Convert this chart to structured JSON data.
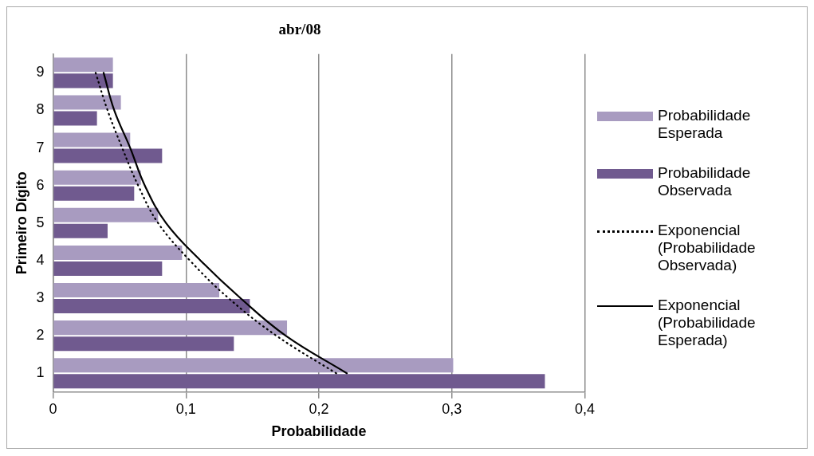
{
  "chart_data": {
    "type": "bar",
    "orientation": "horizontal",
    "title": "abr/08",
    "xlabel": "Probabilidade",
    "ylabel": "Primeiro Dígito",
    "categories": [
      "9",
      "8",
      "7",
      "6",
      "5",
      "4",
      "3",
      "2",
      "1"
    ],
    "xlim": [
      0,
      0.4
    ],
    "xticks": [
      {
        "value": 0,
        "label": "0"
      },
      {
        "value": 0.1,
        "label": "0,1"
      },
      {
        "value": 0.2,
        "label": "0,2"
      },
      {
        "value": 0.3,
        "label": "0,3"
      },
      {
        "value": 0.4,
        "label": "0,4"
      }
    ],
    "grid": "x",
    "legend": "right",
    "series": [
      {
        "name": "Probabilidade Esperada",
        "color": "#a89bc0",
        "values": [
          0.045,
          0.051,
          0.058,
          0.066,
          0.079,
          0.097,
          0.125,
          0.176,
          0.301
        ]
      },
      {
        "name": "Probabilidade Observada",
        "color": "#705a8f",
        "values": [
          0.045,
          0.033,
          0.082,
          0.061,
          0.041,
          0.082,
          0.148,
          0.136,
          0.37
        ]
      },
      {
        "name": "Exponencial (Probabilidade Observada)",
        "type": "line",
        "line_style": "dotted",
        "color": "#000000",
        "values": [
          0.032,
          0.041,
          0.052,
          0.064,
          0.079,
          0.103,
          0.132,
          0.168,
          0.213
        ]
      },
      {
        "name": "Exponencial (Probabilidade Esperada)",
        "type": "line",
        "line_style": "solid",
        "color": "#000000",
        "values": [
          0.038,
          0.046,
          0.058,
          0.069,
          0.085,
          0.111,
          0.141,
          0.175,
          0.221
        ]
      }
    ]
  }
}
